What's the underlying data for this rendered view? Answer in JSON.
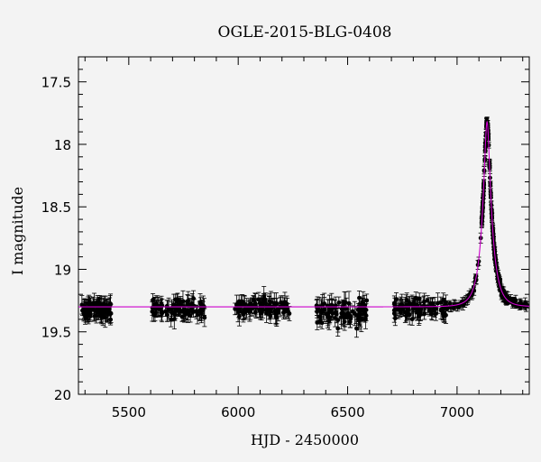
{
  "chart_data": {
    "type": "scatter",
    "title": "OGLE-2015-BLG-0408",
    "xlabel": "HJD - 2450000",
    "ylabel": "I magnitude",
    "xlim": [
      5270,
      7330
    ],
    "ylim": [
      17.3,
      20.0
    ],
    "y_inverted": true,
    "x_ticks": [
      5500,
      6000,
      6500,
      7000
    ],
    "y_ticks": [
      17.5,
      18,
      18.5,
      19,
      19.5,
      20
    ],
    "y_tick_labels": [
      "17.5",
      "18",
      "18.5",
      "19",
      "19.5",
      "20"
    ],
    "grid": false,
    "legend": "none",
    "series": [
      {
        "kind": "points_with_errorbars",
        "color": "#000000",
        "seasons": [
          {
            "x_range": [
              5285,
              5420
            ],
            "mean_mag": 19.32,
            "scatter": 0.05,
            "err": 0.06
          },
          {
            "x_range": [
              5605,
              5850
            ],
            "mean_mag": 19.32,
            "scatter": 0.05,
            "err": 0.06
          },
          {
            "x_range": [
              5985,
              6235
            ],
            "mean_mag": 19.31,
            "scatter": 0.06,
            "err": 0.06
          },
          {
            "x_range": [
              6355,
              6590
            ],
            "mean_mag": 19.33,
            "scatter": 0.07,
            "err": 0.07
          },
          {
            "x_range": [
              6700,
              6950
            ],
            "mean_mag": 19.31,
            "scatter": 0.05,
            "err": 0.06
          },
          {
            "x_range": [
              6950,
              7320
            ],
            "follows_model": true,
            "scatter": 0.02,
            "err": 0.03
          }
        ]
      },
      {
        "kind": "model_curve",
        "color": "#cc00cc",
        "model": "pspl",
        "t0": 7137,
        "tE": 45,
        "u0": 0.25,
        "baseline_mag": 19.3,
        "peak_mag": 17.82
      }
    ]
  }
}
